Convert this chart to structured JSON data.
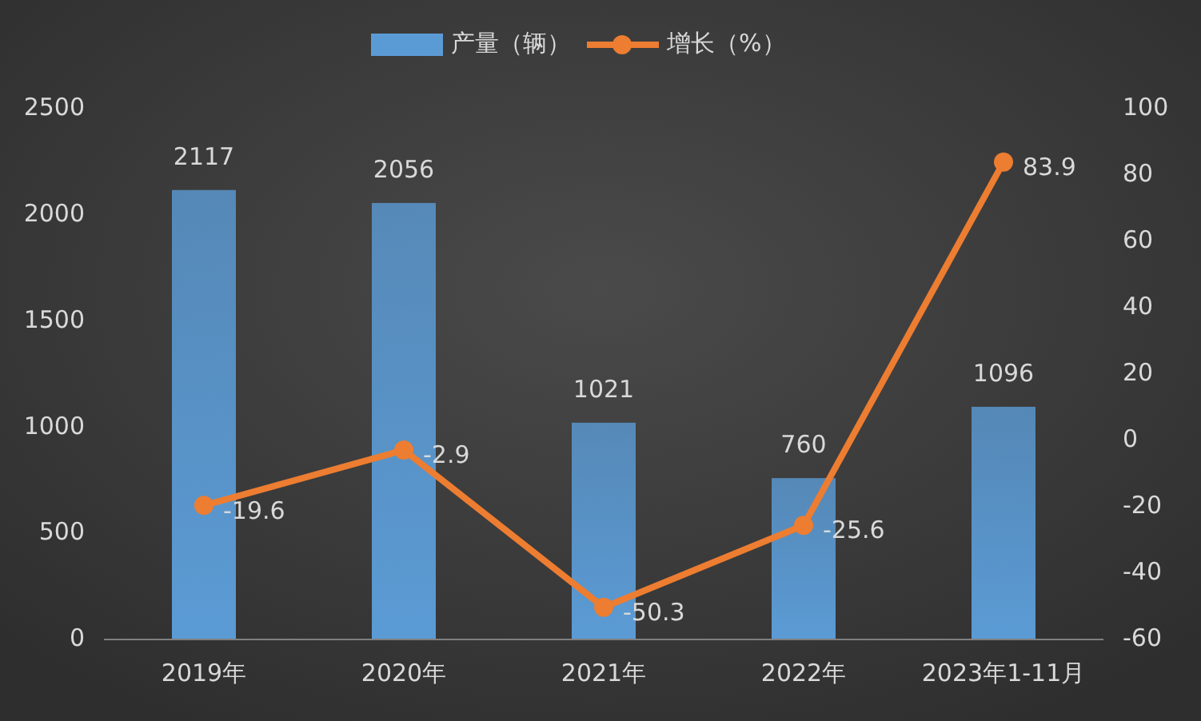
{
  "chart_data": {
    "type": "bar",
    "categories": [
      "2019年",
      "2020年",
      "2021年",
      "2022年",
      "2023年1-11月"
    ],
    "series": [
      {
        "name": "产量（辆）",
        "color": "#5b9bd5",
        "values": [
          2117,
          2056,
          1021,
          760,
          1096
        ]
      },
      {
        "name": "增长（%）",
        "type": "line",
        "axis": "y2",
        "color": "#ed7d31",
        "values": [
          -19.6,
          -2.9,
          -50.3,
          -25.6,
          83.9
        ]
      }
    ],
    "ylim": [
      0,
      2500
    ],
    "yticks": [
      0,
      500,
      1000,
      1500,
      2000,
      2500
    ],
    "y2lim": [
      -60,
      100
    ],
    "y2ticks": [
      -60,
      -40,
      -20,
      0,
      20,
      40,
      60,
      80,
      100
    ],
    "legend": "top",
    "data_labels": true,
    "marker": "circle",
    "grid": false
  }
}
